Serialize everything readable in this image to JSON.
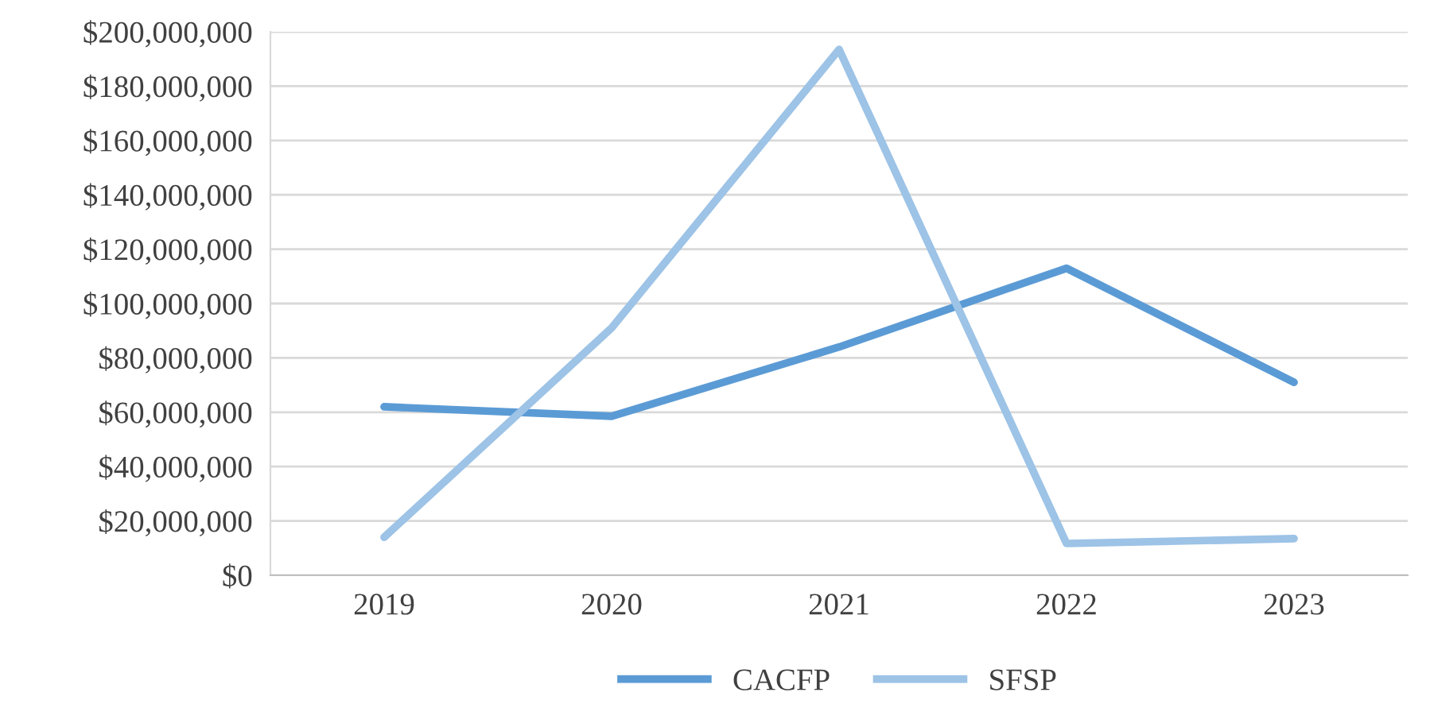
{
  "chart_data": {
    "type": "line",
    "categories": [
      "2019",
      "2020",
      "2021",
      "2022",
      "2023"
    ],
    "series": [
      {
        "name": "CACFP",
        "color": "#5b9bd5",
        "values": [
          62000000,
          58500000,
          84000000,
          113000000,
          71000000
        ]
      },
      {
        "name": "SFSP",
        "color": "#9dc3e6",
        "values": [
          14000000,
          91000000,
          193500000,
          11700000,
          13500000
        ]
      }
    ],
    "ylim": [
      0,
      200000000
    ],
    "yticks": [
      {
        "value": 0,
        "label": "$0"
      },
      {
        "value": 20000000,
        "label": "$20,000,000"
      },
      {
        "value": 40000000,
        "label": "$40,000,000"
      },
      {
        "value": 60000000,
        "label": "$60,000,000"
      },
      {
        "value": 80000000,
        "label": "$80,000,000"
      },
      {
        "value": 100000000,
        "label": "$100,000,000"
      },
      {
        "value": 120000000,
        "label": "$120,000,000"
      },
      {
        "value": 140000000,
        "label": "$140,000,000"
      },
      {
        "value": 160000000,
        "label": "$160,000,000"
      },
      {
        "value": 180000000,
        "label": "$180,000,000"
      },
      {
        "value": 200000000,
        "label": "$200,000,000"
      }
    ],
    "grid": "y",
    "legend": "bottom",
    "marker": "none",
    "line_style": "solid"
  }
}
